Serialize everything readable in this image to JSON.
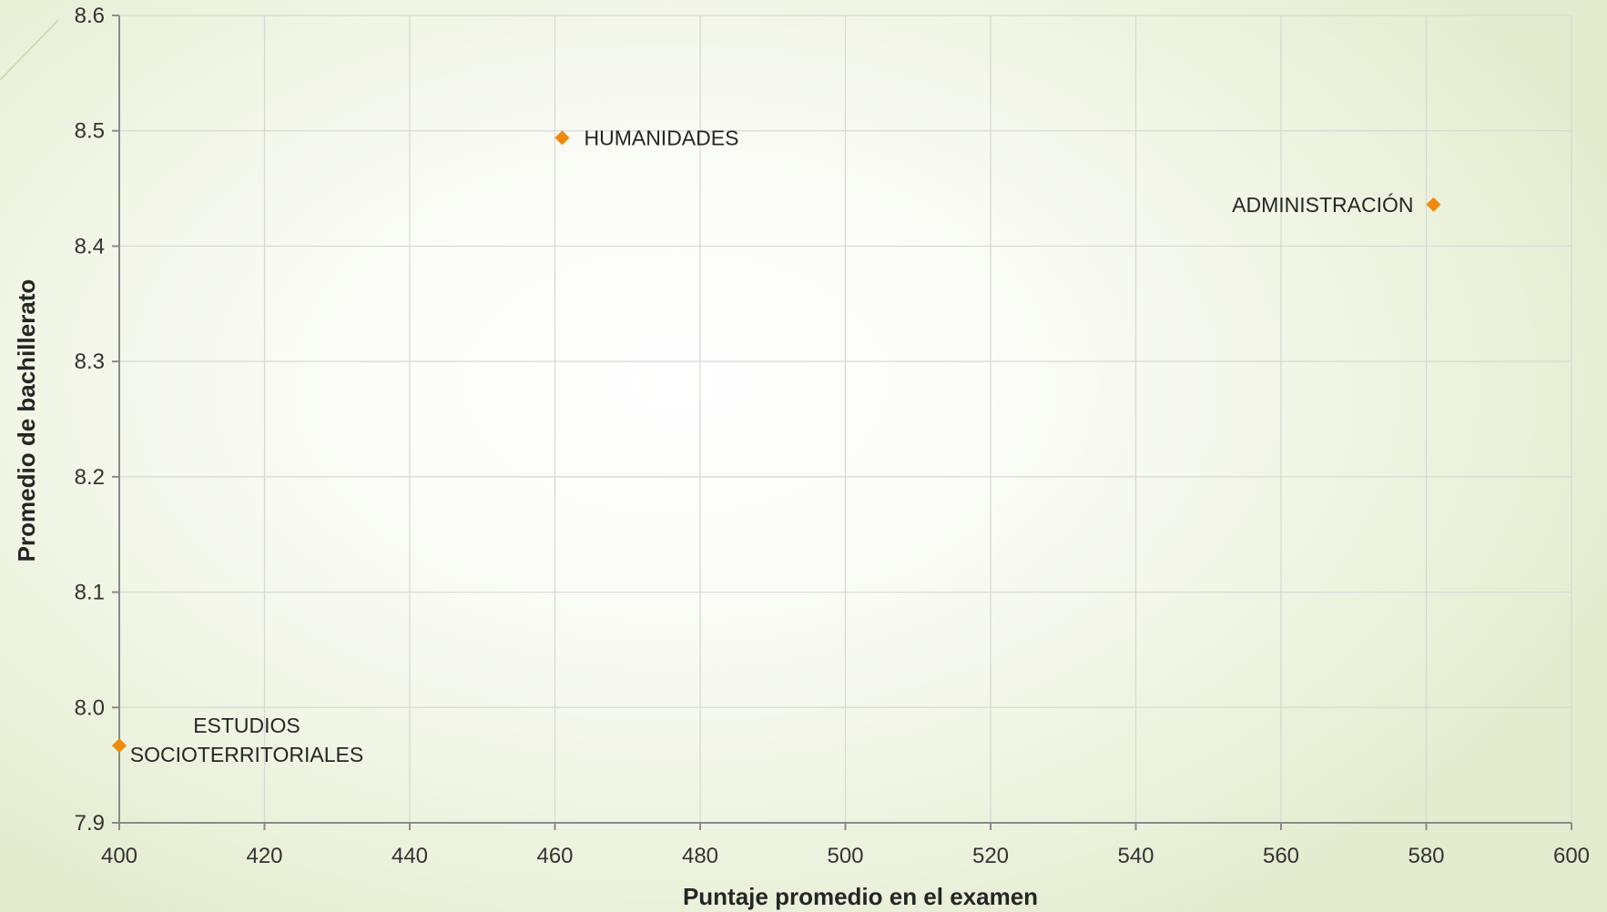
{
  "chart_data": {
    "type": "scatter",
    "xlabel": "Puntaje promedio en el examen",
    "ylabel": "Promedio de bachillerato",
    "xlim": [
      400,
      600
    ],
    "ylim": [
      7.9,
      8.6
    ],
    "x_ticks": [
      "400",
      "420",
      "440",
      "460",
      "480",
      "500",
      "520",
      "540",
      "560",
      "580",
      "600"
    ],
    "y_ticks": [
      "7.9",
      "8.0",
      "8.1",
      "8.2",
      "8.3",
      "8.4",
      "8.5",
      "8.6"
    ],
    "grid": true,
    "marker": "diamond",
    "marker_color": "#f08a0c",
    "points": [
      {
        "label": "HUMANIDADES",
        "label_lines": [
          "HUMANIDADES"
        ],
        "label_position": "right",
        "x": 461,
        "y": 8.494
      },
      {
        "label": "ADMINISTRACIÓN",
        "label_lines": [
          "ADMINISTRACIÓN"
        ],
        "label_position": "left",
        "x": 581,
        "y": 8.436
      },
      {
        "label": "ESTUDIOS SOCIOTERRITORIALES",
        "label_lines": [
          "ESTUDIOS",
          "SOCIOTERRITORIALES"
        ],
        "label_position": "right",
        "x": 400,
        "y": 7.967
      }
    ]
  }
}
